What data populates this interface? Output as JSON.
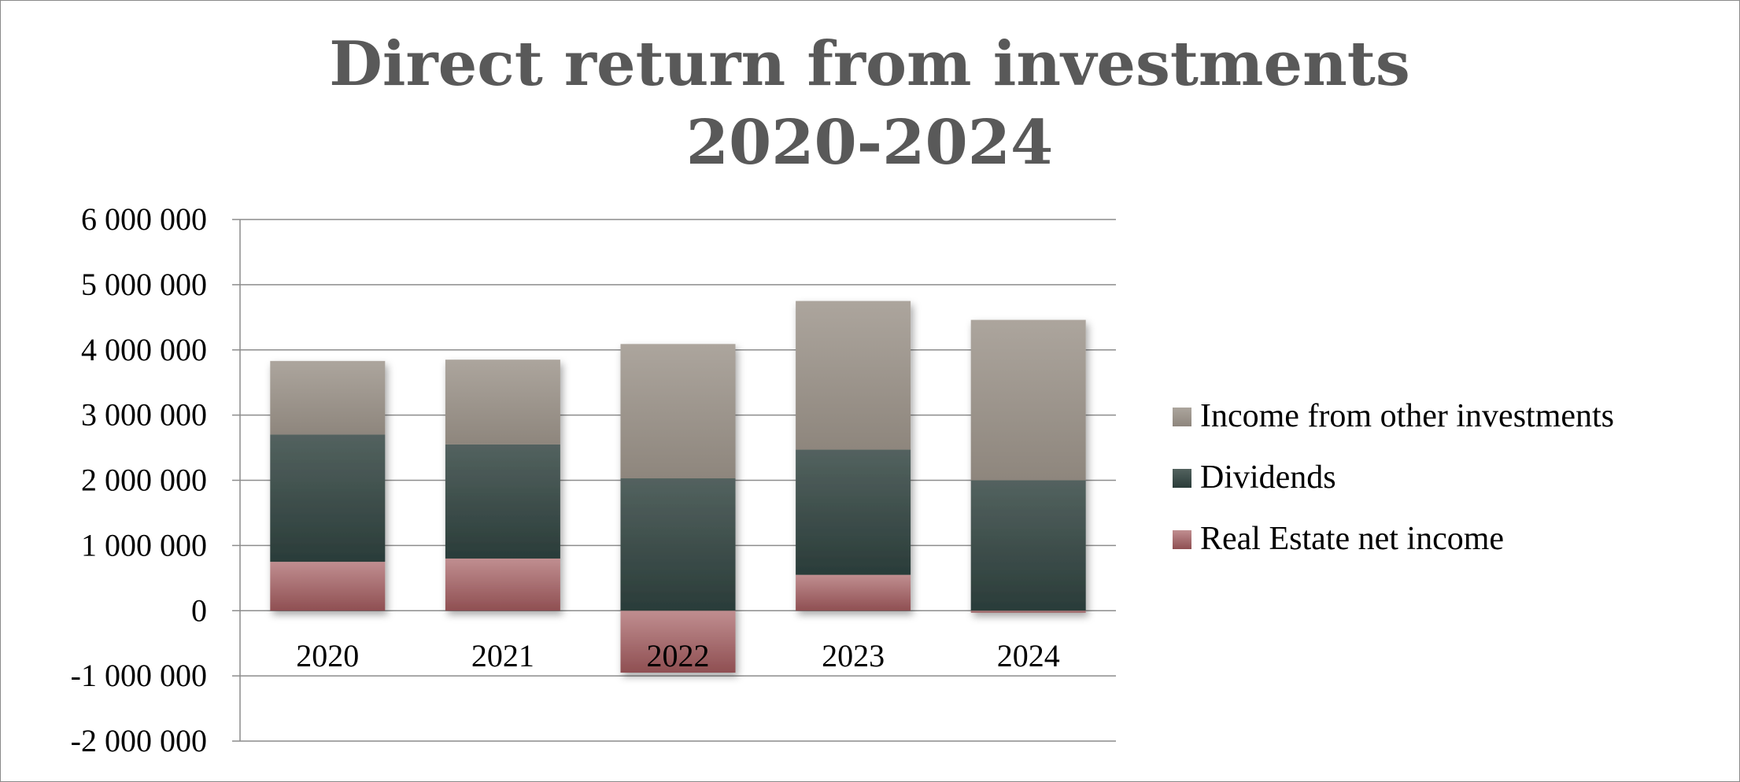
{
  "chart_data": {
    "type": "bar",
    "stacked": true,
    "title": "Direct return from investments",
    "subtitle": "2020-2024",
    "categories": [
      "2020",
      "2021",
      "2022",
      "2023",
      "2024"
    ],
    "series": [
      {
        "name": "Real Estate net income",
        "values": [
          750000,
          800000,
          -950000,
          550000,
          -30000
        ],
        "color": "#9a5a5c"
      },
      {
        "name": "Dividends",
        "values": [
          1950000,
          1750000,
          2030000,
          1920000,
          2000000
        ],
        "color": "#2f4340"
      },
      {
        "name": "Income from other investments",
        "values": [
          1130000,
          1300000,
          2060000,
          2280000,
          2460000
        ],
        "color": "#9c948b"
      }
    ],
    "ylim": [
      -2000000,
      6000000
    ],
    "yticks": [
      6000000,
      5000000,
      4000000,
      3000000,
      2000000,
      1000000,
      0,
      -1000000,
      -2000000
    ],
    "ytick_labels": [
      "6 000 000",
      "5 000 000",
      "4 000 000",
      "3 000 000",
      "2 000 000",
      "1 000 000",
      "0",
      "-1 000 000",
      "-2 000 000"
    ],
    "grid": true,
    "legend_position": "right"
  }
}
